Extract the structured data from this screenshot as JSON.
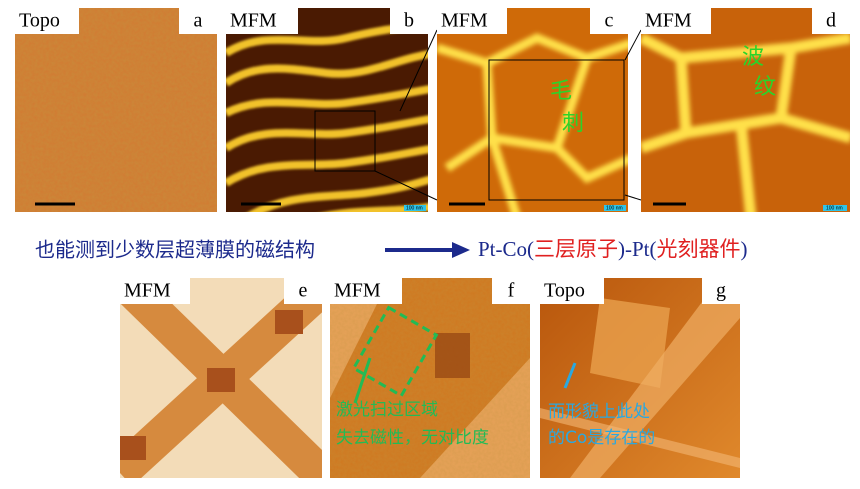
{
  "panels": [
    {
      "label": "Topo",
      "letter": "a"
    },
    {
      "label": "MFM",
      "letter": "b",
      "scale_label": "100 nm"
    },
    {
      "label": "MFM",
      "letter": "c",
      "scale_label": "100 nm",
      "notes": [
        "毛",
        "刺"
      ]
    },
    {
      "label": "MFM",
      "letter": "d",
      "scale_label": "100 nm",
      "notes": [
        "波",
        "纹"
      ]
    },
    {
      "label": "MFM",
      "letter": "e"
    },
    {
      "label": "MFM",
      "letter": "f",
      "notes": [
        "激光扫过区域",
        "失去磁性，无对比度"
      ]
    },
    {
      "label": "Topo",
      "letter": "g",
      "notes": [
        "而形貌上此处",
        "的Co是存在的"
      ]
    }
  ],
  "caption": {
    "left": "也能测到少数层超薄膜的磁结构",
    "parts": [
      "Pt-Co(",
      "三层原子",
      ")-Pt(",
      "光刻器件",
      ")"
    ]
  }
}
